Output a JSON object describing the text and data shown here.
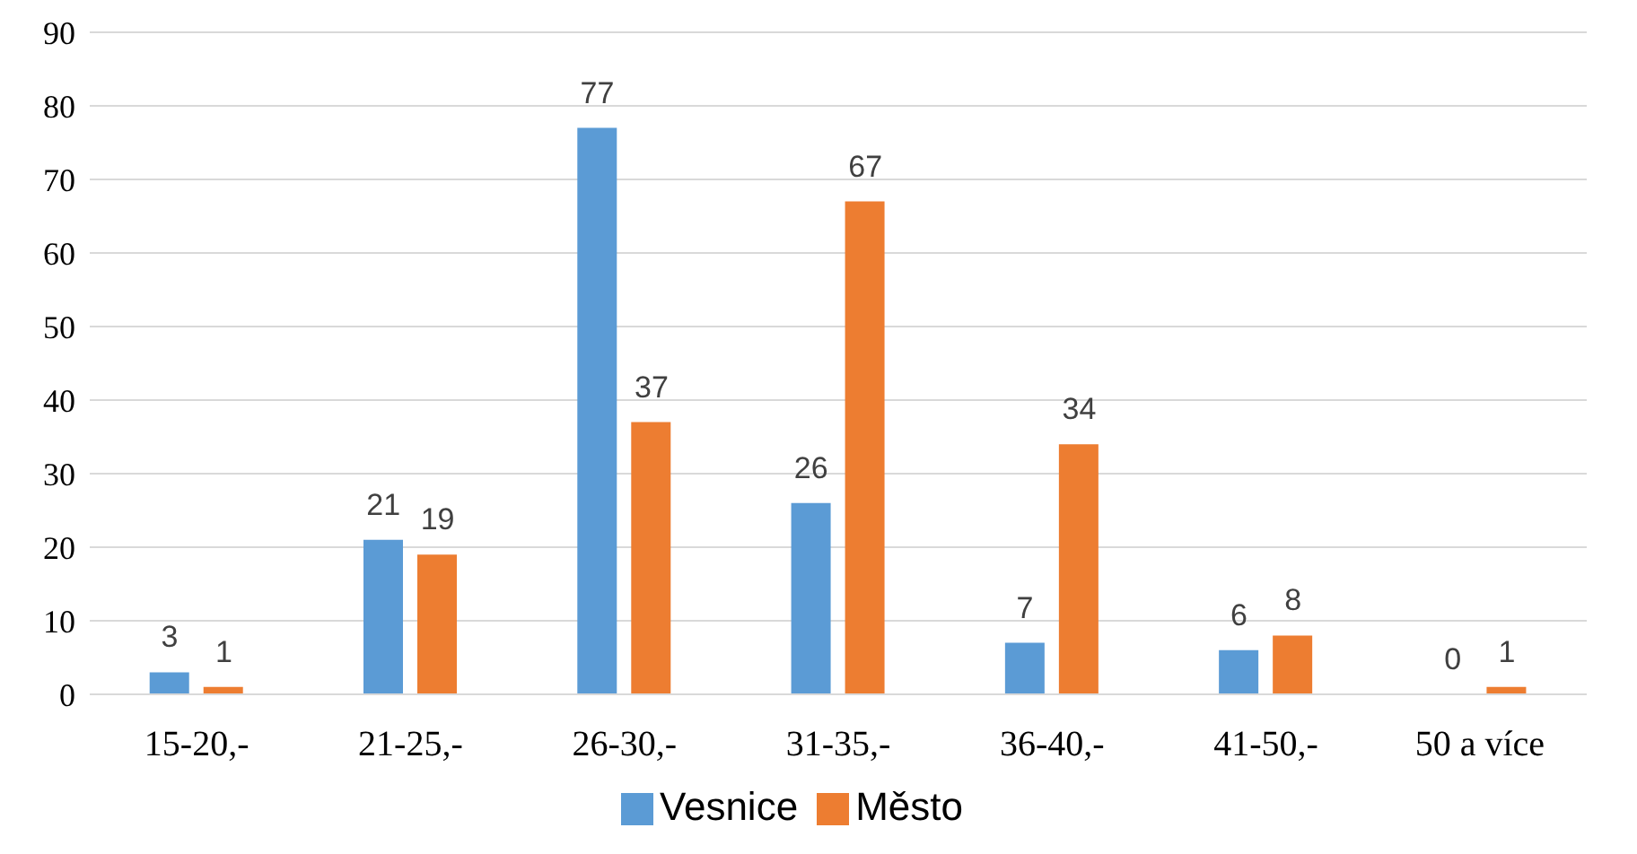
{
  "chart_data": {
    "type": "bar",
    "categories": [
      "15-20,-",
      "21-25,-",
      "26-30,-",
      "31-35,-",
      "36-40,-",
      "41-50,-",
      "50 a více"
    ],
    "series": [
      {
        "name": "Vesnice",
        "color": "#5b9bd5",
        "values": [
          3,
          21,
          77,
          26,
          7,
          6,
          0
        ]
      },
      {
        "name": "Město",
        "color": "#ed7d31",
        "values": [
          1,
          19,
          37,
          67,
          34,
          8,
          1
        ]
      }
    ],
    "ylim": [
      0,
      90
    ],
    "yticks": [
      0,
      10,
      20,
      30,
      40,
      50,
      60,
      70,
      80,
      90
    ],
    "grid": "y",
    "legend": "bottom",
    "data_labels": true
  }
}
